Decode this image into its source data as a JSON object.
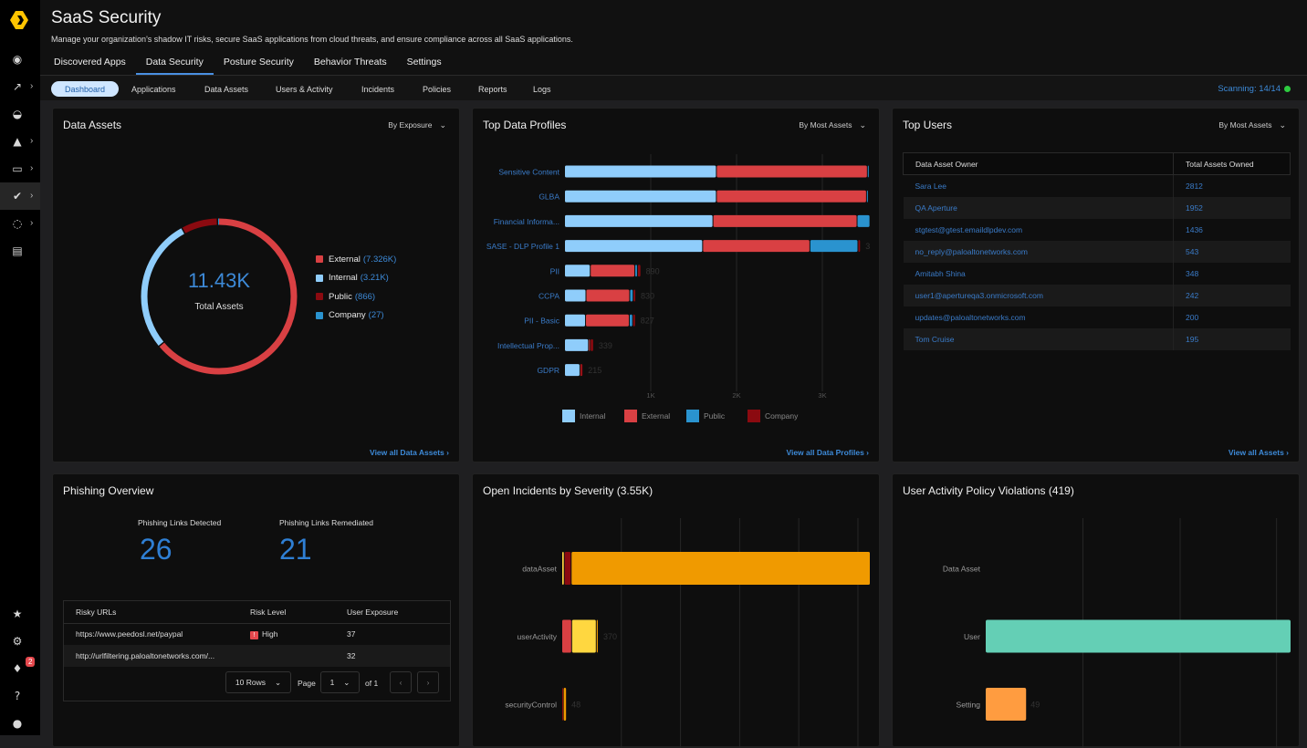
{
  "app": {
    "title": "SaaS Security",
    "subtitle": "Manage your organization's shadow IT risks, secure SaaS applications from cloud threats, and ensure compliance across all SaaS applications."
  },
  "sidebar": {
    "top": [
      {
        "icon": "radar-icon"
      },
      {
        "icon": "analytics-icon",
        "expandable": true
      },
      {
        "icon": "gauge-icon"
      },
      {
        "icon": "alarm-icon",
        "expandable": true
      },
      {
        "icon": "monitor-icon",
        "expandable": true
      },
      {
        "icon": "shield-check-icon",
        "expandable": true,
        "active": true
      },
      {
        "icon": "dotted-circle-icon",
        "expandable": true
      },
      {
        "icon": "report-icon"
      }
    ],
    "bottom": [
      {
        "icon": "star-icon"
      },
      {
        "icon": "gear-icon"
      },
      {
        "icon": "bell-icon",
        "badge": "2"
      },
      {
        "icon": "help-icon",
        "glyph": "?"
      },
      {
        "icon": "user-icon"
      }
    ]
  },
  "tabs": [
    "Discovered Apps",
    "Data Security",
    "Posture Security",
    "Behavior Threats",
    "Settings"
  ],
  "active_tab": "Data Security",
  "subnav": [
    "Dashboard",
    "Applications",
    "Data Assets",
    "Users & Activity",
    "Incidents",
    "Policies",
    "Reports",
    "Logs"
  ],
  "active_subnav": "Dashboard",
  "scanning": "Scanning: 14/14",
  "colors": {
    "accent": "#3d8ad8",
    "external": "#d94043",
    "internal": "#8fcdfb",
    "public": "#8b0a10",
    "company": "#2a93cf",
    "scan_ok": "#2ecc40"
  },
  "data_assets": {
    "title": "Data Assets",
    "dropdown": "By Exposure",
    "total": "11.43K",
    "total_label": "Total Assets",
    "view_all": "View all Data Assets",
    "legend": [
      {
        "name": "External",
        "value": "(7.326K)",
        "color": "#d94043"
      },
      {
        "name": "Internal",
        "value": "(3.21K)",
        "color": "#8fcdfb"
      },
      {
        "name": "Public",
        "value": "(866)",
        "color": "#8b0a10"
      },
      {
        "name": "Company",
        "value": "(27)",
        "color": "#2a93cf"
      }
    ]
  },
  "top_profiles": {
    "title": "Top Data Profiles",
    "dropdown": "By Most Assets",
    "view_all": "View all Data Profiles"
  },
  "top_users": {
    "title": "Top Users",
    "dropdown": "By Most Assets",
    "view_all": "View all Assets",
    "headers": [
      "Data Asset Owner",
      "Total Assets Owned"
    ],
    "rows": [
      [
        "Sara Lee",
        "2812"
      ],
      [
        "QA Aperture",
        "1952"
      ],
      [
        "stgtest@gtest.emaildlpdev.com",
        "1436"
      ],
      [
        "no_reply@paloaltonetworks.com",
        "543"
      ],
      [
        "Amitabh Shina",
        "348"
      ],
      [
        "user1@apertureqa3.onmicrosoft.com",
        "242"
      ],
      [
        "updates@paloaltonetworks.com",
        "200"
      ],
      [
        "Tom Cruise",
        "195"
      ]
    ]
  },
  "phishing": {
    "title": "Phishing Overview",
    "detected_label": "Phishing Links Detected",
    "detected": "26",
    "remediated_label": "Phishing Links Remediated",
    "remediated": "21",
    "headers": [
      "Risky URLs",
      "Risk Level",
      "User Exposure"
    ],
    "rows": [
      [
        "https://www.peedosl.net/paypal",
        "High",
        "37"
      ],
      [
        "http://urlfiltering.paloaltonetworks.com/...",
        "",
        "32"
      ]
    ],
    "rows_select": "10 Rows",
    "page_label": "Page",
    "page": "1",
    "of": "of 1"
  },
  "incidents": {
    "title": "Open Incidents by Severity (3.55K)"
  },
  "violations": {
    "title": "User Activity Policy Violations (419)"
  },
  "chart_data": [
    {
      "type": "pie",
      "title": "Data Assets",
      "center_value": "11.43K",
      "center_label": "Total Assets",
      "categories": [
        "External",
        "Internal",
        "Public",
        "Company"
      ],
      "values": [
        7326,
        3210,
        866,
        27
      ],
      "colors": [
        "#d94043",
        "#8fcdfb",
        "#8b0a10",
        "#2a93cf"
      ]
    },
    {
      "type": "bar",
      "orientation": "horizontal",
      "stacked": true,
      "title": "Top Data Profiles",
      "categories": [
        "Sensitive Content",
        "GLBA",
        "Financial Informa...",
        "SASE - DLP Profile 1",
        "PII",
        "CCPA",
        "PII - Basic",
        "Intellectual Prop...",
        "GDPR"
      ],
      "series": [
        {
          "name": "Internal",
          "color": "#8fcdfb",
          "values": [
            1770,
            1770,
            1730,
            1610,
            300,
            250,
            245,
            280,
            180
          ]
        },
        {
          "name": "External",
          "color": "#d94043",
          "values": [
            1760,
            1750,
            1680,
            1250,
            520,
            510,
            510,
            20,
            5
          ]
        },
        {
          "name": "Public",
          "color": "#2a93cf",
          "values": [
            10,
            15,
            150,
            560,
            30,
            40,
            40,
            0,
            0
          ]
        },
        {
          "name": "Company",
          "color": "#8b0a10",
          "values": [
            0,
            0,
            0,
            30,
            40,
            30,
            32,
            39,
            30
          ]
        }
      ],
      "data_labels": [
        "",
        "",
        "",
        "3",
        "890",
        "830",
        "827",
        "339",
        "215"
      ],
      "xticks": [
        "1K",
        "2K",
        "3K"
      ],
      "xticks_values": [
        1000,
        2000,
        3000
      ],
      "xlim": [
        0,
        3600
      ],
      "grid": true,
      "legend": "bottom"
    },
    {
      "type": "bar",
      "orientation": "horizontal",
      "stacked": true,
      "title": "Open Incidents by Severity (3.55K)",
      "categories": [
        "dataAsset",
        "userActivity",
        "securityControl"
      ],
      "series": [
        {
          "color": "#ffd23f",
          "values": [
            25,
            0,
            0
          ]
        },
        {
          "color": "#d94043",
          "values": [
            0,
            100,
            0
          ]
        },
        {
          "color": "#8b0a10",
          "values": [
            70,
            0,
            15
          ]
        },
        {
          "color": "#ffd740",
          "values": [
            0,
            250,
            0
          ]
        },
        {
          "color": "#f09a00",
          "values": [
            3035,
            20,
            33
          ]
        }
      ],
      "data_labels": [
        "",
        "370",
        "48"
      ],
      "xlim": [
        0,
        3650
      ],
      "grid": true
    },
    {
      "type": "bar",
      "orientation": "horizontal",
      "title": "User Activity Policy Violations (419)",
      "categories": [
        "Data Asset",
        "User",
        "Setting"
      ],
      "values": [
        0,
        370,
        49
      ],
      "colors": [
        "#64cfb5",
        "#64cfb5",
        "#ff9c40"
      ],
      "data_labels": [
        "",
        "",
        "49"
      ],
      "xlim": [
        0,
        370
      ],
      "grid": true
    }
  ]
}
